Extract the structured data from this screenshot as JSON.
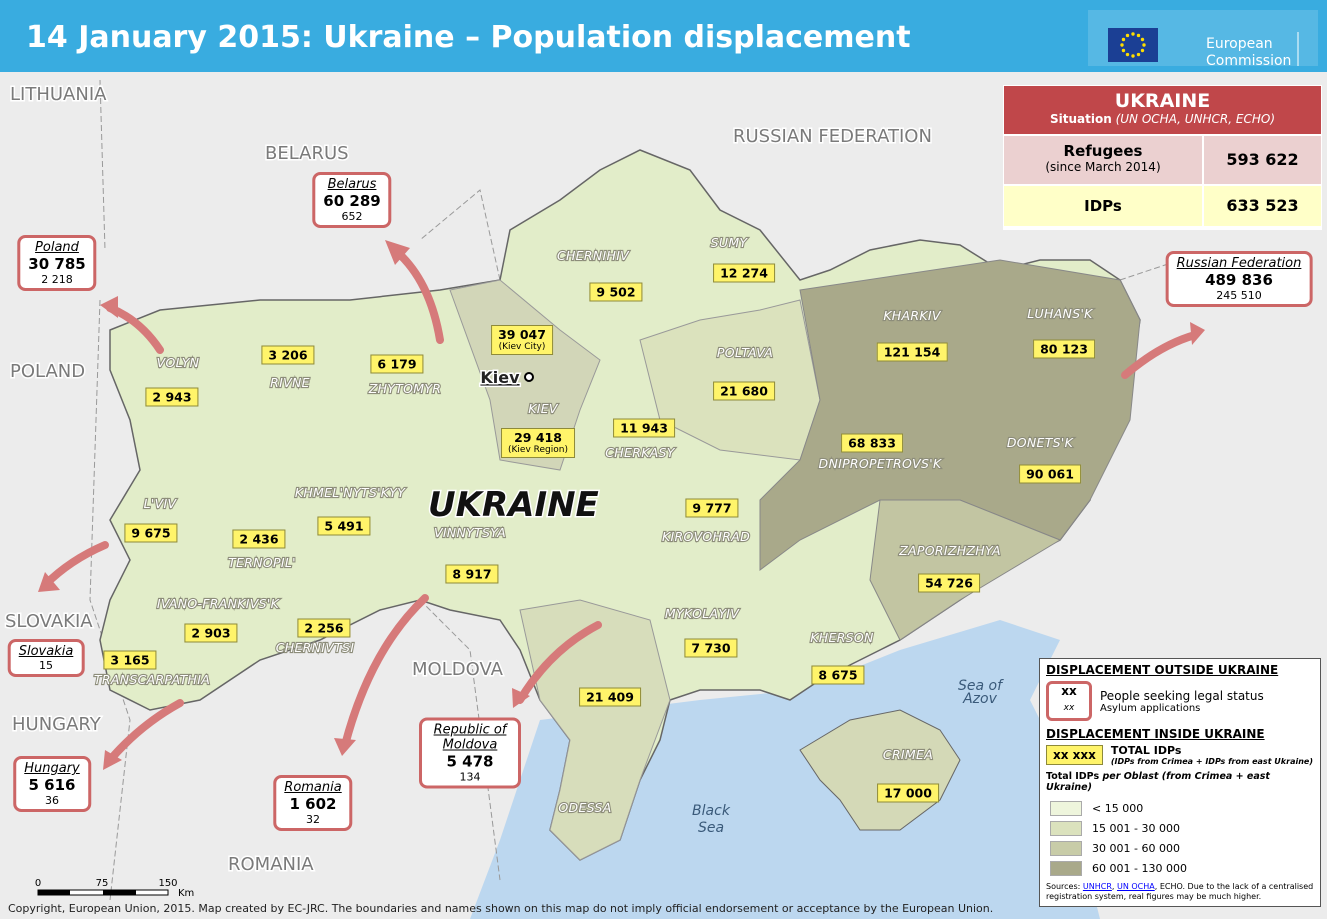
{
  "header": {
    "title": "14 January 2015: Ukraine – Population displacement",
    "logo_lines": [
      "European",
      "Commission"
    ]
  },
  "situation": {
    "title": "UKRAINE",
    "subtitle": "Situation",
    "sources": "(UN OCHA, UNHCR, ECHO)",
    "rows": [
      {
        "label": "Refugees",
        "sublabel": "(since March 2014)",
        "value": "593 622"
      },
      {
        "label": "IDPs",
        "value": "633 523"
      }
    ]
  },
  "map": {
    "countries": [
      "LITHUANIA",
      "BELARUS",
      "RUSSIAN FEDERATION",
      "POLAND",
      "SLOVAKIA",
      "HUNGARY",
      "MOLDOVA",
      "ROMANIA"
    ],
    "country_label": "UKRAINE",
    "seas": [
      [
        "Sea of",
        "Azov"
      ],
      [
        "Black",
        "Sea"
      ]
    ],
    "oblasts": [
      {
        "name": "VOLYN",
        "idps": "2 943"
      },
      {
        "name": "RIVNE",
        "idps": "3 206"
      },
      {
        "name": "ZHYTOMYR",
        "idps": "6 179"
      },
      {
        "name": "CHERNIHIV",
        "idps": "9 502"
      },
      {
        "name": "SUMY",
        "idps": "12 274"
      },
      {
        "name": "KIEV",
        "idps": "29 418",
        "note": "(Kiev Region)"
      },
      {
        "name": "Kiev",
        "idps": "39 047",
        "note": "(Kiev City)"
      },
      {
        "name": "POLTAVA",
        "idps": "21 680"
      },
      {
        "name": "KHARKIV",
        "idps": "121 154"
      },
      {
        "name": "LUHANS'K",
        "idps": "80 123"
      },
      {
        "name": "CHERKASY",
        "idps": "11 943"
      },
      {
        "name": "DNIPROPETROVS'K",
        "idps": "68 833"
      },
      {
        "name": "DONETS'K",
        "idps": "90 061"
      },
      {
        "name": "L'VIV",
        "idps": "9 675"
      },
      {
        "name": "TERNOPIL'",
        "idps": "2 436"
      },
      {
        "name": "KHMEL'NYTS'KYY",
        "idps": "5 491"
      },
      {
        "name": "VINNYTSYA",
        "idps": "8 917"
      },
      {
        "name": "KIROVOHRAD",
        "idps": "9 777"
      },
      {
        "name": "ZAPORIZHZHYA",
        "idps": "54 726"
      },
      {
        "name": "IVANO-FRANKIVS'K",
        "idps": "2 903"
      },
      {
        "name": "CHERNIVTSI",
        "idps": "2 256"
      },
      {
        "name": "TRANSCARPATHIA",
        "idps": "3 165"
      },
      {
        "name": "MYKOLAYIV",
        "idps": "7 730"
      },
      {
        "name": "KHERSON",
        "idps": "8 675"
      },
      {
        "name": "ODESSA",
        "idps": "21 409"
      },
      {
        "name": "CRIMEA",
        "idps": "17 000"
      }
    ],
    "neighbours": [
      {
        "name": "Belarus",
        "legal_status": "60 289",
        "asylum": "652"
      },
      {
        "name": "Poland",
        "legal_status": "30 785",
        "asylum": "2 218"
      },
      {
        "name": "Russian Federation",
        "legal_status": "489 836",
        "asylum": "245 510"
      },
      {
        "name": "Slovakia",
        "asylum": "15"
      },
      {
        "name": "Hungary",
        "legal_status": "5 616",
        "asylum": "36"
      },
      {
        "name": "Romania",
        "legal_status": "1 602",
        "asylum": "32"
      },
      {
        "name": "Republic of Moldova",
        "legal_status": "5 478",
        "asylum": "134"
      }
    ],
    "scale": [
      "0",
      "75",
      "150",
      "Km"
    ]
  },
  "legend": {
    "outside_title": "DISPLACEMENT OUTSIDE UKRAINE",
    "outside_sample": [
      "xx",
      "xx"
    ],
    "outside_label": "People seeking legal status",
    "outside_sublabel": "Asylum applications",
    "inside_title": "DISPLACEMENT INSIDE UKRAINE",
    "inside_sample": "xx xxx",
    "inside_label": "TOTAL IDPs",
    "inside_sublabel": "(IDPs from Crimea + IDPs from east Ukraine)",
    "classes_title": [
      "Total IDPs ",
      "per Oblast",
      "(from Crimea + east Ukraine)"
    ],
    "classes": [
      "< 15 000",
      "15 001 - 30 000",
      "30 001 - 60 000",
      "60 001 - 130 000"
    ],
    "sources": [
      "Sources: ",
      "UNHCR",
      ", ",
      "UN OCHA",
      ", ECHO. Due to the lack of a centralised registration system, real figures may be much higher."
    ]
  },
  "footer": "Copyright, European Union, 2015. Map created by EC-JRC. The boundaries and names shown on this map do not imply official endorsement or acceptance by the European Union."
}
